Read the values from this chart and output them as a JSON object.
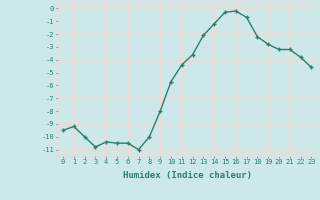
{
  "x": [
    0,
    1,
    2,
    3,
    4,
    5,
    6,
    7,
    8,
    9,
    10,
    11,
    12,
    13,
    14,
    15,
    16,
    17,
    18,
    19,
    20,
    21,
    22,
    23
  ],
  "y": [
    -9.5,
    -9.2,
    -10.0,
    -10.8,
    -10.4,
    -10.5,
    -10.5,
    -11.0,
    -10.0,
    -8.0,
    -5.7,
    -4.4,
    -3.6,
    -2.1,
    -1.2,
    -0.3,
    -0.2,
    -0.7,
    -2.2,
    -2.8,
    -3.2,
    -3.2,
    -3.8,
    -4.6
  ],
  "line_color": "#2e7d6e",
  "marker": "+",
  "markersize": 3.5,
  "linewidth": 1.0,
  "markeredgewidth": 1.0,
  "xlabel": "Humidex (Indice chaleur)",
  "xlim": [
    -0.5,
    23.5
  ],
  "ylim": [
    -11.5,
    0.5
  ],
  "yticks": [
    0,
    -1,
    -2,
    -3,
    -4,
    -5,
    -6,
    -7,
    -8,
    -9,
    -10,
    -11
  ],
  "xticks": [
    0,
    1,
    2,
    3,
    4,
    5,
    6,
    7,
    8,
    9,
    10,
    11,
    12,
    13,
    14,
    15,
    16,
    17,
    18,
    19,
    20,
    21,
    22,
    23
  ],
  "bg_color": "#cde8e8",
  "grid_color": "#f0d8d8",
  "tick_fontsize": 5.0,
  "xlabel_fontsize": 6.5,
  "tick_color": "#2e7d6e",
  "label_color": "#2e7d6e"
}
